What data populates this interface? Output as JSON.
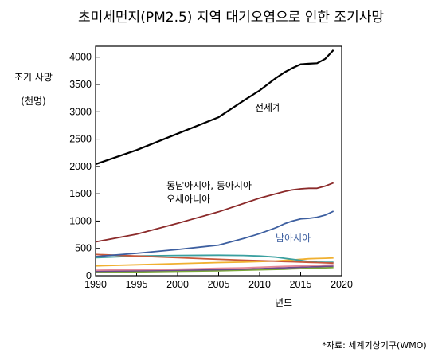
{
  "chart_data": {
    "type": "line",
    "title": "초미세먼지(PM2.5) 지역 대기오염으로 인한 조기사망",
    "ylabel": "조기 사망",
    "yunit": "(천명)",
    "xlabel": "년도",
    "source": "*자료: 세계기상기구(WMO)",
    "xlim": [
      1990,
      2020
    ],
    "ylim": [
      0,
      4200
    ],
    "xticks": [
      "1990",
      "1995",
      "2000",
      "2005",
      "2010",
      "2015",
      "2020"
    ],
    "yticks": [
      "0",
      "500",
      "1000",
      "1500",
      "2000",
      "2500",
      "3000",
      "3500",
      "4000"
    ],
    "grid": false,
    "annotations": [
      "전세계",
      "동남아시아, 동아시아",
      "오세아니아",
      "남아시아"
    ],
    "x": [
      1990,
      1995,
      2000,
      2005,
      2008,
      2010,
      2012,
      2013,
      2014,
      2015,
      2016,
      2017,
      2018,
      2019
    ],
    "series": [
      {
        "name": "전세계",
        "color": "#000000",
        "values": [
          2040,
          2300,
          2600,
          2900,
          3200,
          3390,
          3620,
          3720,
          3800,
          3870,
          3880,
          3890,
          3970,
          4130
        ]
      },
      {
        "name": "동남아시아, 동아시아 오세아니아",
        "color": "#8b2a2a",
        "values": [
          620,
          760,
          960,
          1170,
          1320,
          1420,
          1500,
          1540,
          1570,
          1590,
          1600,
          1600,
          1640,
          1700
        ]
      },
      {
        "name": "남아시아",
        "color": "#3d5fa0",
        "values": [
          350,
          410,
          480,
          560,
          680,
          770,
          880,
          950,
          1000,
          1040,
          1050,
          1070,
          1110,
          1180
        ]
      },
      {
        "color": "#c8583a",
        "values": [
          390,
          360,
          330,
          300,
          285,
          275,
          265,
          260,
          255,
          250,
          245,
          240,
          235,
          230
        ]
      },
      {
        "color": "#3aa0a0",
        "values": [
          330,
          360,
          370,
          375,
          370,
          360,
          340,
          320,
          300,
          280,
          260,
          250,
          245,
          245
        ]
      },
      {
        "color": "#f0b030",
        "values": [
          180,
          200,
          220,
          240,
          250,
          260,
          270,
          280,
          290,
          300,
          310,
          315,
          320,
          325
        ]
      },
      {
        "color": "#e58a9a",
        "values": [
          100,
          110,
          120,
          135,
          145,
          155,
          165,
          170,
          175,
          180,
          185,
          190,
          195,
          200
        ]
      },
      {
        "color": "#6a4a8a",
        "values": [
          80,
          90,
          100,
          110,
          120,
          130,
          140,
          145,
          150,
          155,
          160,
          165,
          170,
          175
        ]
      },
      {
        "color": "#7aa83a",
        "values": [
          60,
          70,
          80,
          90,
          100,
          108,
          115,
          120,
          125,
          130,
          135,
          140,
          145,
          150
        ]
      }
    ]
  }
}
